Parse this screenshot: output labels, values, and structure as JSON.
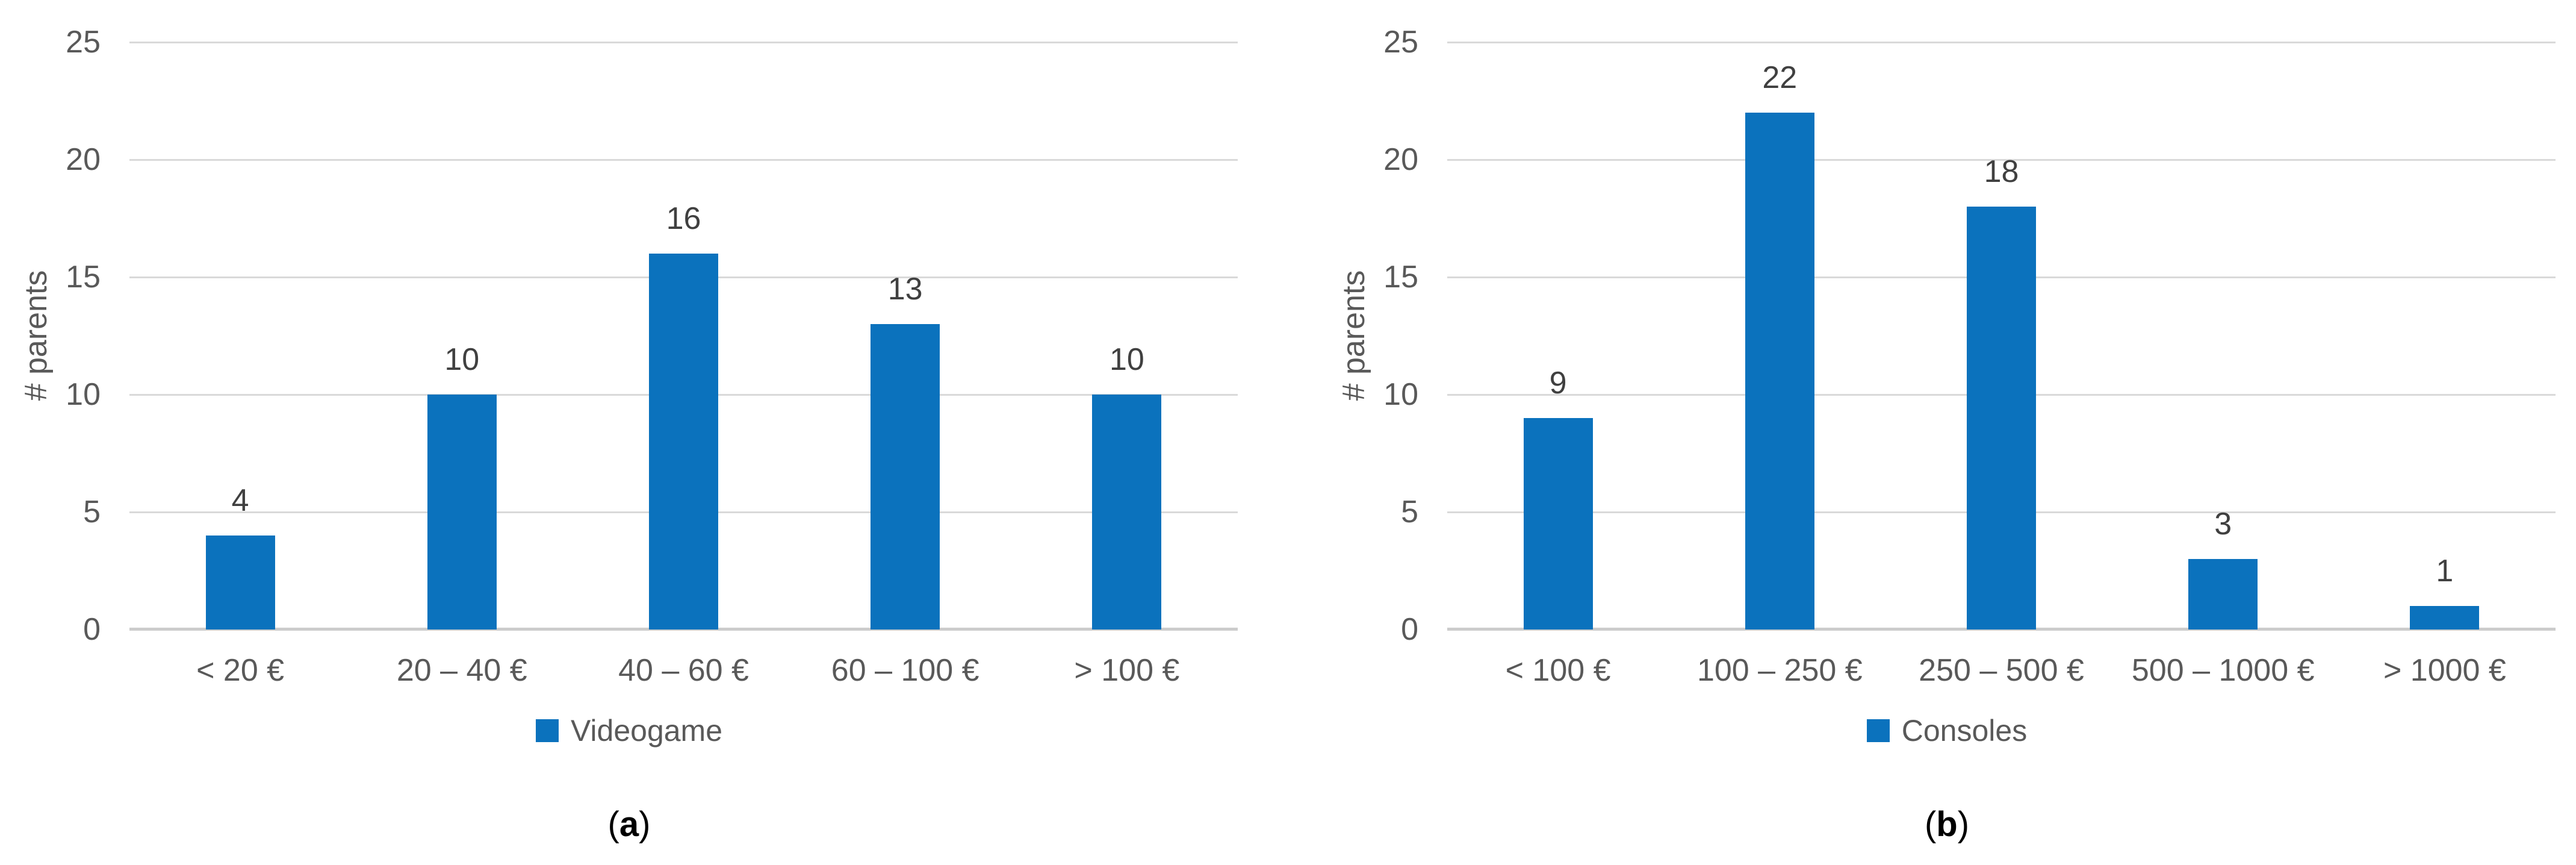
{
  "figure": {
    "background_color": "#ffffff",
    "panels": [
      {
        "caption_prefix": "(",
        "caption_letter": "a",
        "caption_suffix": ")"
      },
      {
        "caption_prefix": "(",
        "caption_letter": "b",
        "caption_suffix": ")"
      }
    ]
  },
  "chart_data": [
    {
      "type": "bar",
      "title": "",
      "series_name": "Videogame",
      "categories": [
        "< 20 €",
        "20 – 40 €",
        "40 – 60 €",
        "60 – 100 €",
        "> 100 €"
      ],
      "values": [
        4,
        10,
        16,
        13,
        10
      ],
      "xlabel": "",
      "ylabel": "# parents",
      "ylim": [
        0,
        25
      ],
      "ytick_step": 5,
      "yticks": [
        0,
        5,
        10,
        15,
        20,
        25
      ],
      "grid": true,
      "data_labels": true,
      "legend_position": "bottom",
      "bar_color": "#0b72bd",
      "gridline_color": "#d9d9d9",
      "axis_text_color": "#595959",
      "data_label_color": "#404040"
    },
    {
      "type": "bar",
      "title": "",
      "series_name": "Consoles",
      "categories": [
        "< 100 €",
        "100 – 250 €",
        "250 – 500 €",
        "500 – 1000 €",
        "> 1000 €"
      ],
      "values": [
        9,
        22,
        18,
        3,
        1
      ],
      "xlabel": "",
      "ylabel": "# parents",
      "ylim": [
        0,
        25
      ],
      "ytick_step": 5,
      "yticks": [
        0,
        5,
        10,
        15,
        20,
        25
      ],
      "grid": true,
      "data_labels": true,
      "legend_position": "bottom",
      "bar_color": "#0b72bd",
      "gridline_color": "#d9d9d9",
      "axis_text_color": "#595959",
      "data_label_color": "#404040"
    }
  ]
}
